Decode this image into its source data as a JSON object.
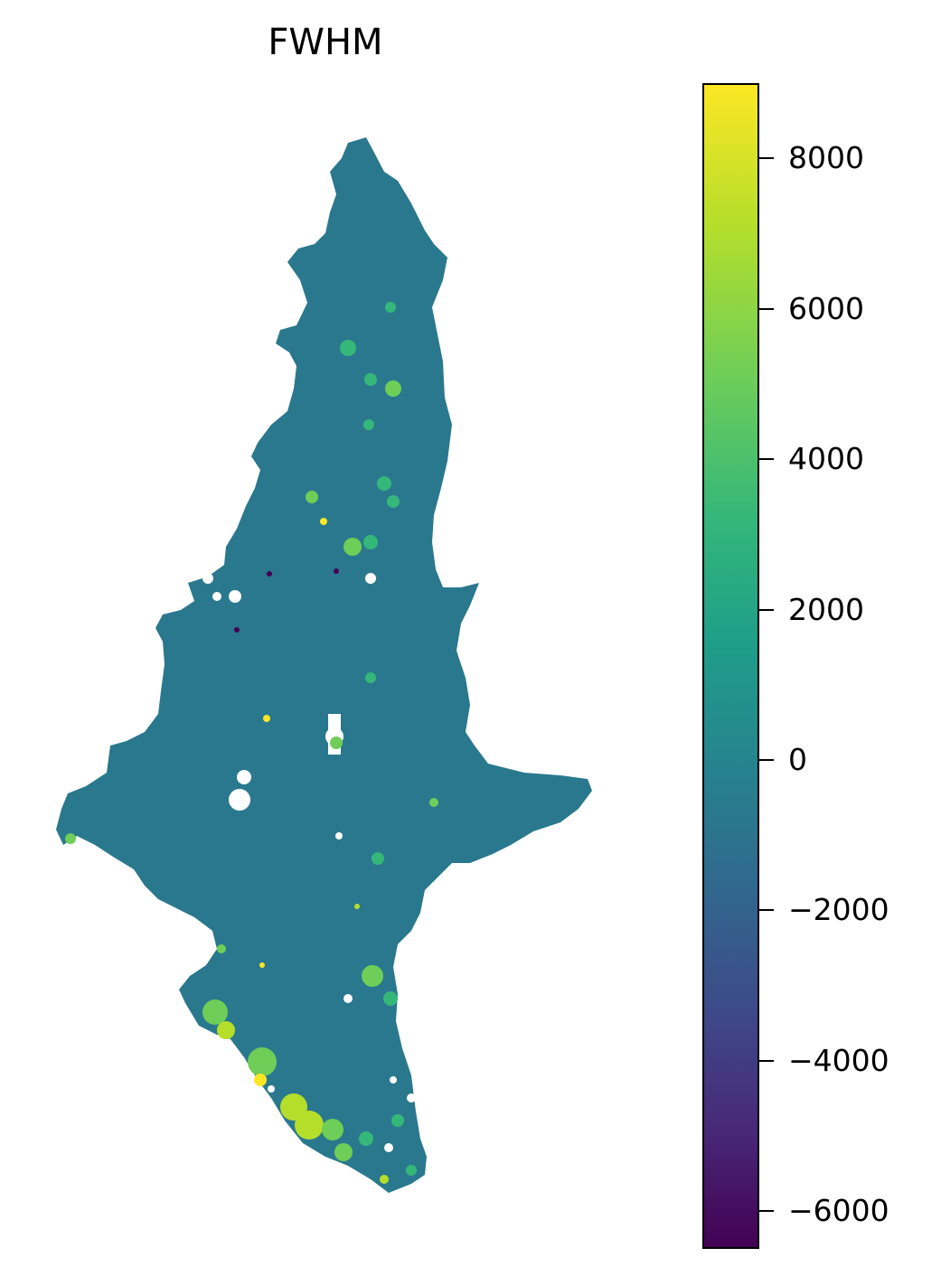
{
  "title": "FWHM",
  "colorbar": {
    "colormap": "viridis",
    "min": -6500,
    "max": 9000,
    "ticks": [
      {
        "value": 8000,
        "label": "8000"
      },
      {
        "value": 6000,
        "label": "6000"
      },
      {
        "value": 4000,
        "label": "4000"
      },
      {
        "value": 2000,
        "label": "2000"
      },
      {
        "value": 0,
        "label": "0"
      },
      {
        "value": -2000,
        "label": "−2000"
      },
      {
        "value": -4000,
        "label": "−4000"
      },
      {
        "value": -6000,
        "label": "−6000"
      }
    ]
  },
  "map": {
    "base_color": "#2a788e",
    "highlight_colors": [
      "#35b779",
      "#6ece58",
      "#b5de2b",
      "#fde725",
      "#21918c",
      "#440154"
    ]
  }
}
